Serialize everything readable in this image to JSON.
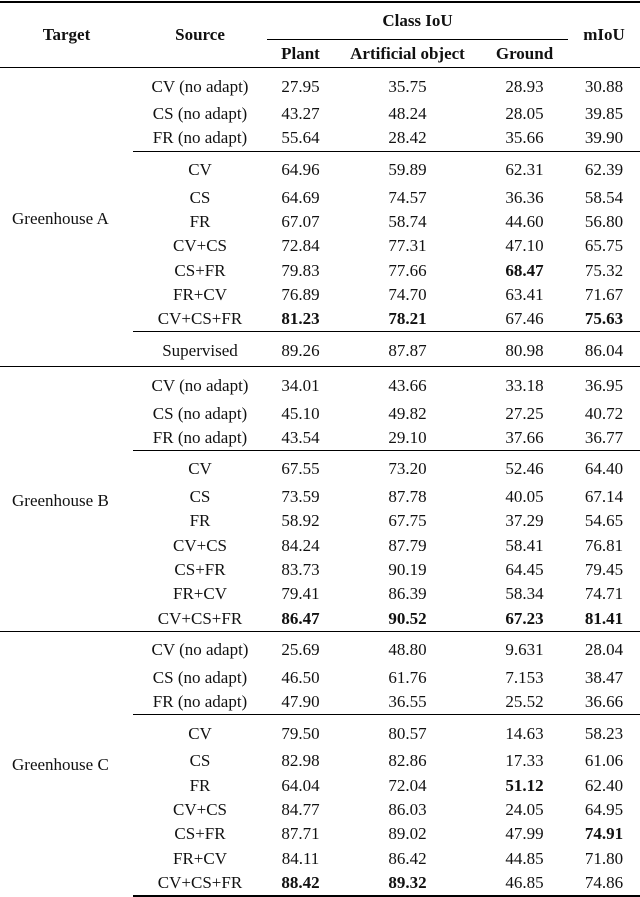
{
  "header": {
    "target": "Target",
    "source": "Source",
    "class_iou": "Class IoU",
    "columns": [
      "Plant",
      "Artificial object",
      "Ground"
    ],
    "miou": "mIoU"
  },
  "groups": [
    {
      "target": "Greenhouse A",
      "blocks": [
        [
          {
            "source": "CV (no adapt)",
            "values": [
              "27.95",
              "35.75",
              "28.93",
              "30.88"
            ]
          },
          {
            "source": "CS (no adapt)",
            "values": [
              "43.27",
              "48.24",
              "28.05",
              "39.85"
            ]
          },
          {
            "source": "FR (no adapt)",
            "values": [
              "55.64",
              "28.42",
              "35.66",
              "39.90"
            ]
          }
        ],
        [
          {
            "source": "CV",
            "values": [
              "64.96",
              "59.89",
              "62.31",
              "62.39"
            ]
          },
          {
            "source": "CS",
            "values": [
              "64.69",
              "74.57",
              "36.36",
              "58.54"
            ]
          },
          {
            "source": "FR",
            "values": [
              "67.07",
              "58.74",
              "44.60",
              "56.80"
            ]
          },
          {
            "source": "CV+CS",
            "values": [
              "72.84",
              "77.31",
              "47.10",
              "65.75"
            ]
          },
          {
            "source": "CS+FR",
            "values": [
              "79.83",
              "77.66",
              "68.47",
              "75.32"
            ],
            "bold": [
              2
            ]
          },
          {
            "source": "FR+CV",
            "values": [
              "76.89",
              "74.70",
              "63.41",
              "71.67"
            ]
          },
          {
            "source": "CV+CS+FR",
            "values": [
              "81.23",
              "78.21",
              "67.46",
              "75.63"
            ],
            "bold": [
              0,
              1,
              3
            ]
          }
        ],
        [
          {
            "source": "Supervised",
            "values": [
              "89.26",
              "87.87",
              "80.98",
              "86.04"
            ]
          }
        ]
      ]
    },
    {
      "target": "Greenhouse B",
      "blocks": [
        [
          {
            "source": "CV (no adapt)",
            "values": [
              "34.01",
              "43.66",
              "33.18",
              "36.95"
            ]
          },
          {
            "source": "CS (no adapt)",
            "values": [
              "45.10",
              "49.82",
              "27.25",
              "40.72"
            ]
          },
          {
            "source": "FR (no adapt)",
            "values": [
              "43.54",
              "29.10",
              "37.66",
              "36.77"
            ]
          }
        ],
        [
          {
            "source": "CV",
            "values": [
              "67.55",
              "73.20",
              "52.46",
              "64.40"
            ]
          },
          {
            "source": "CS",
            "values": [
              "73.59",
              "87.78",
              "40.05",
              "67.14"
            ]
          },
          {
            "source": "FR",
            "values": [
              "58.92",
              "67.75",
              "37.29",
              "54.65"
            ]
          },
          {
            "source": "CV+CS",
            "values": [
              "84.24",
              "87.79",
              "58.41",
              "76.81"
            ]
          },
          {
            "source": "CS+FR",
            "values": [
              "83.73",
              "90.19",
              "64.45",
              "79.45"
            ]
          },
          {
            "source": "FR+CV",
            "values": [
              "79.41",
              "86.39",
              "58.34",
              "74.71"
            ]
          },
          {
            "source": "CV+CS+FR",
            "values": [
              "86.47",
              "90.52",
              "67.23",
              "81.41"
            ],
            "bold": [
              0,
              1,
              2,
              3
            ]
          }
        ]
      ]
    },
    {
      "target": "Greenhouse C",
      "blocks": [
        [
          {
            "source": "CV (no adapt)",
            "values": [
              "25.69",
              "48.80",
              "9.631",
              "28.04"
            ]
          },
          {
            "source": "CS (no adapt)",
            "values": [
              "46.50",
              "61.76",
              "7.153",
              "38.47"
            ]
          },
          {
            "source": "FR (no adapt)",
            "values": [
              "47.90",
              "36.55",
              "25.52",
              "36.66"
            ]
          }
        ],
        [
          {
            "source": "CV",
            "values": [
              "79.50",
              "80.57",
              "14.63",
              "58.23"
            ]
          },
          {
            "source": "CS",
            "values": [
              "82.98",
              "82.86",
              "17.33",
              "61.06"
            ]
          },
          {
            "source": "FR",
            "values": [
              "64.04",
              "72.04",
              "51.12",
              "62.40"
            ],
            "bold": [
              2
            ]
          },
          {
            "source": "CV+CS",
            "values": [
              "84.77",
              "86.03",
              "24.05",
              "64.95"
            ]
          },
          {
            "source": "CS+FR",
            "values": [
              "87.71",
              "89.02",
              "47.99",
              "74.91"
            ],
            "bold": [
              3
            ]
          },
          {
            "source": "FR+CV",
            "values": [
              "84.11",
              "86.42",
              "44.85",
              "71.80"
            ]
          },
          {
            "source": "CV+CS+FR",
            "values": [
              "88.42",
              "89.32",
              "46.85",
              "74.86"
            ],
            "bold": [
              0,
              1
            ]
          }
        ]
      ]
    }
  ]
}
